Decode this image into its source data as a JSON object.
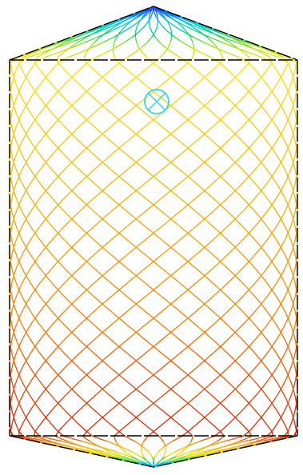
{
  "figure": {
    "subject": "lattice-shell-vessel",
    "background_color": "#ffffff",
    "outline_color": "#000000",
    "marker_color": "#2fd6e6",
    "strut_color_scale": [
      "#7a00ff",
      "#0060ff",
      "#00c8ff",
      "#00d86a",
      "#b8e600",
      "#ffe000",
      "#f2b400",
      "#ff7a00",
      "#d81000"
    ]
  }
}
